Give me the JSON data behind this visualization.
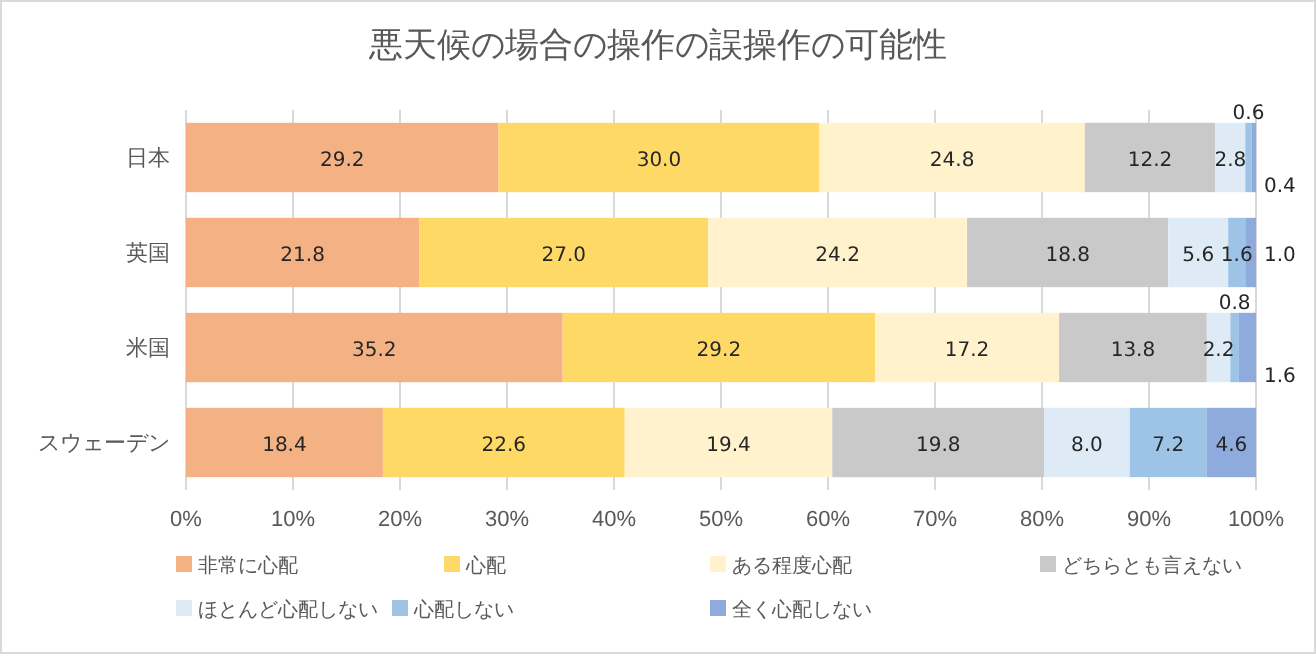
{
  "chart_data": {
    "type": "bar",
    "orientation": "horizontal",
    "stacked": true,
    "title": "悪天候の場合の操作の誤操作の可能性",
    "categories": [
      "日本",
      "英国",
      "米国",
      "スウェーデン"
    ],
    "series": [
      {
        "name": "非常に心配",
        "color": "#f4b183",
        "values": [
          29.2,
          21.8,
          35.2,
          18.4
        ],
        "value_labels": [
          "29.2",
          "21.8",
          "35.2",
          "18.4"
        ]
      },
      {
        "name": "心配",
        "color": "#ffd966",
        "values": [
          30.0,
          27.0,
          29.2,
          22.6
        ],
        "value_labels": [
          "30.0",
          "27.0",
          "29.2",
          "22.6"
        ]
      },
      {
        "name": "ある程度心配",
        "color": "#fff2cc",
        "values": [
          24.8,
          24.2,
          17.2,
          19.4
        ],
        "value_labels": [
          "24.8",
          "24.2",
          "17.2",
          "19.4"
        ]
      },
      {
        "name": "どちらとも言えない",
        "color": "#c9c9c9",
        "values": [
          12.2,
          18.8,
          13.8,
          19.8
        ],
        "value_labels": [
          "12.2",
          "18.8",
          "13.8",
          "19.8"
        ]
      },
      {
        "name": "ほとんど心配しない",
        "color": "#deebf7",
        "values": [
          2.8,
          5.6,
          2.2,
          8.0
        ],
        "value_labels": [
          "2.8",
          "5.6",
          "2.2",
          "8.0"
        ]
      },
      {
        "name": "心配しない",
        "color": "#9dc3e6",
        "values": [
          0.6,
          1.6,
          0.8,
          7.2
        ],
        "value_labels": [
          "0.6",
          "1.6",
          "0.8",
          "7.2"
        ]
      },
      {
        "name": "全く心配しない",
        "color": "#8faadc",
        "values": [
          0.4,
          1.0,
          1.6,
          4.6
        ],
        "value_labels": [
          "0.4",
          "1.0",
          "1.6",
          "4.6"
        ]
      }
    ],
    "xlim": [
      0,
      100
    ],
    "xticks": [
      {
        "value": 0,
        "label": "0%"
      },
      {
        "value": 10,
        "label": "10%"
      },
      {
        "value": 20,
        "label": "20%"
      },
      {
        "value": 30,
        "label": "30%"
      },
      {
        "value": 40,
        "label": "40%"
      },
      {
        "value": 50,
        "label": "50%"
      },
      {
        "value": 60,
        "label": "60%"
      },
      {
        "value": 70,
        "label": "70%"
      },
      {
        "value": 80,
        "label": "80%"
      },
      {
        "value": 90,
        "label": "90%"
      },
      {
        "value": 100,
        "label": "100%"
      }
    ],
    "grid": "x",
    "legend": "bottom"
  }
}
